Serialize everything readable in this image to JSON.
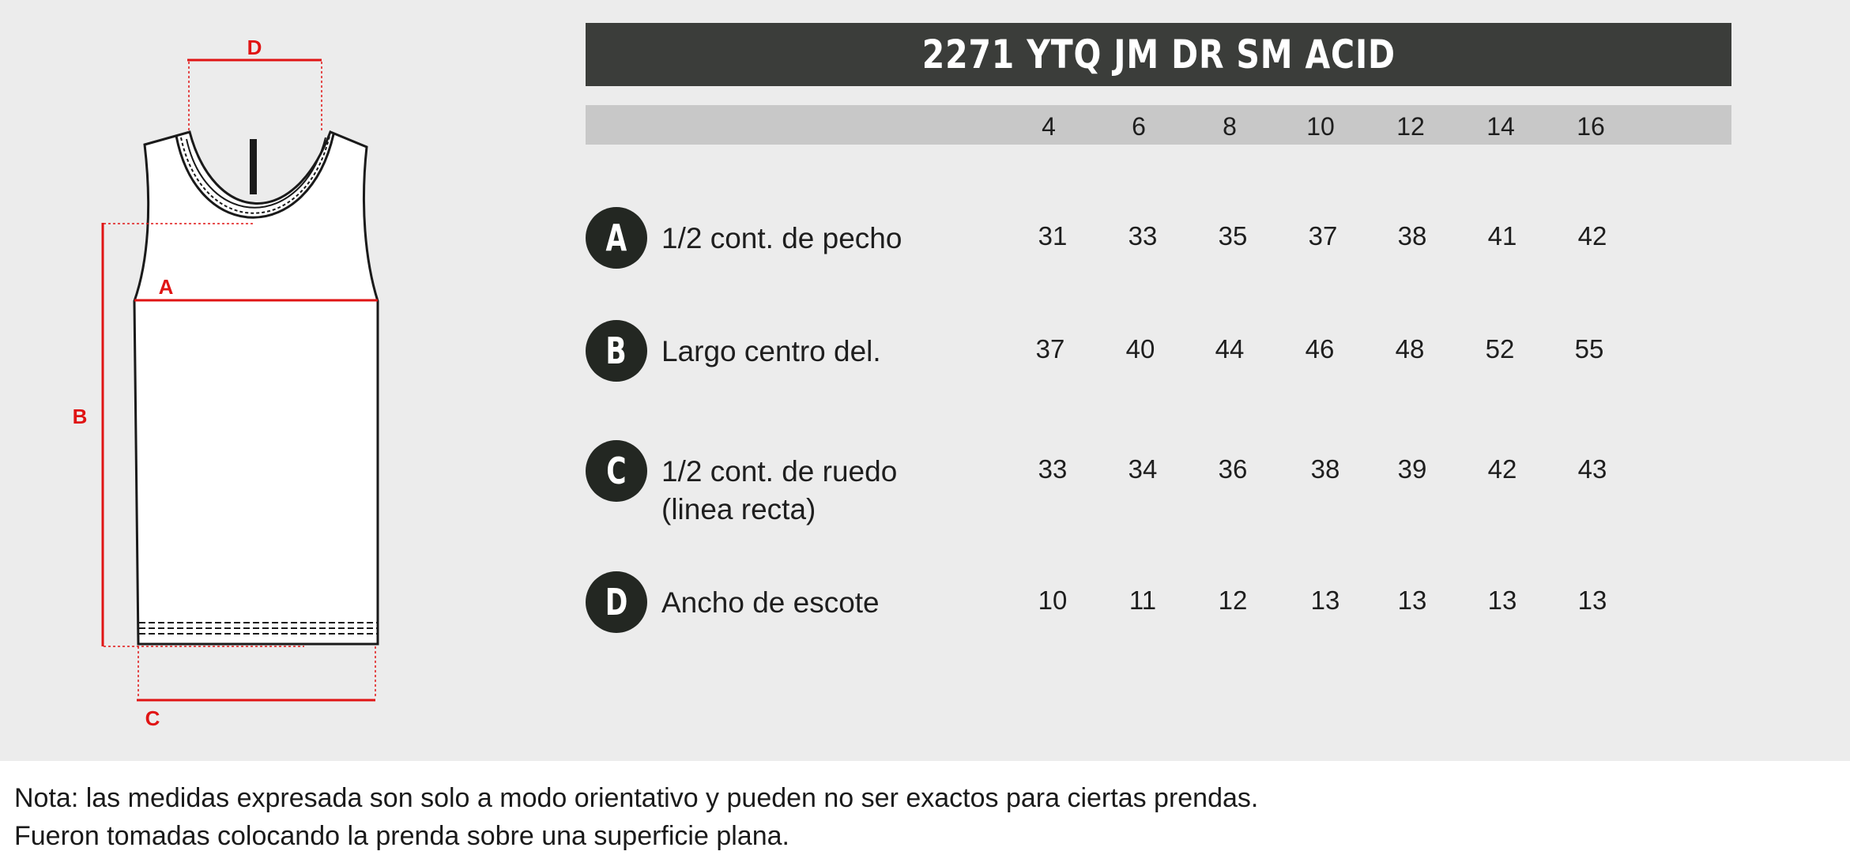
{
  "title": "2271 YTQ JM DR SM ACID",
  "sizes": [
    "4",
    "6",
    "8",
    "10",
    "12",
    "14",
    "16"
  ],
  "diagram_labels": {
    "a": "A",
    "b": "B",
    "c": "C",
    "d": "D"
  },
  "rows": [
    {
      "letter": "A",
      "label": "1/2 cont. de pecho",
      "label_line2": "",
      "values": [
        "31",
        "33",
        "35",
        "37",
        "38",
        "41",
        "42"
      ]
    },
    {
      "letter": "B",
      "label": "Largo centro del.",
      "label_line2": "",
      "values": [
        "37",
        "40",
        "44",
        "46",
        "48",
        "52",
        "55"
      ]
    },
    {
      "letter": "C",
      "label": "1/2 cont. de ruedo",
      "label_line2": "(linea recta)",
      "values": [
        "33",
        "34",
        "36",
        "38",
        "39",
        "42",
        "43"
      ]
    },
    {
      "letter": "D",
      "label": "Ancho de escote",
      "label_line2": "",
      "values": [
        "10",
        "11",
        "12",
        "13",
        "13",
        "13",
        "13"
      ]
    }
  ],
  "note": {
    "line1": "Nota: las medidas expresada son solo a modo orientativo y pueden no ser exactos para ciertas prendas.",
    "line2": "Fueron tomadas colocando la prenda sobre una superficie plana."
  },
  "colors": {
    "panel_background": "#ececec",
    "title_bar": "#3b3d3a",
    "size_bar": "#c8c8c8",
    "badge": "#232722",
    "measure_lines": "#e01414"
  }
}
